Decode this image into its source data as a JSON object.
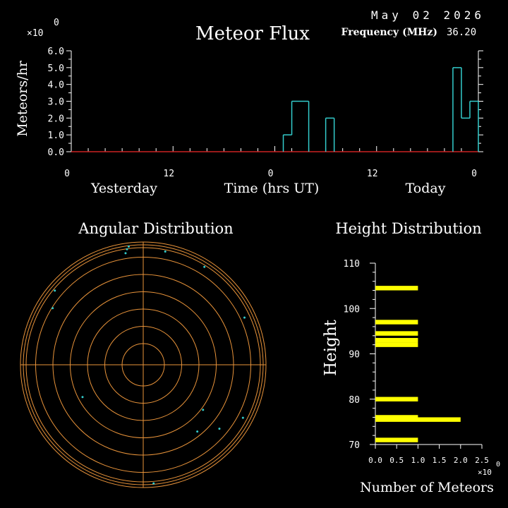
{
  "header": {
    "date": "May 02 2026",
    "frequency_label": "Frequency (MHz)",
    "frequency_value": "36.20"
  },
  "colors": {
    "background": "#000000",
    "axis": "#ffffff",
    "flux_line": "#33cccc",
    "baseline": "#cc2222",
    "polar_rings": "#e8933a",
    "polar_points": "#33cccc",
    "height_bars": "#ffff00"
  },
  "chart_data": [
    {
      "type": "line",
      "title": "Meteor Flux",
      "ylabel": "Meteors/hr",
      "xlabel": "Time (hrs UT)",
      "y_exponent_label": "×10",
      "y_exponent_value": "0",
      "ylim": [
        0,
        6
      ],
      "yticks": [
        "0.0",
        "1.0",
        "2.0",
        "3.0",
        "4.0",
        "5.0",
        "6.0"
      ],
      "xlim": [
        0,
        48
      ],
      "xticks": [
        {
          "x": 0,
          "label": "0"
        },
        {
          "x": 12,
          "label": "12"
        },
        {
          "x": 24,
          "label": "0"
        },
        {
          "x": 36,
          "label": "12"
        },
        {
          "x": 48,
          "label": "0"
        }
      ],
      "day_labels": {
        "yesterday": "Yesterday",
        "today": "Today"
      },
      "series": [
        {
          "step_from_hour": 0,
          "hourly_values": [
            0,
            0,
            0,
            0,
            0,
            0,
            0,
            0,
            0,
            0,
            0,
            0,
            0,
            0,
            0,
            0,
            0,
            0,
            0,
            0,
            0,
            0,
            0,
            0,
            0,
            1,
            3,
            3,
            0,
            0,
            2,
            0,
            0,
            0,
            0,
            0,
            0,
            0,
            0,
            0,
            0,
            0,
            0,
            0,
            0,
            5,
            2,
            3
          ]
        }
      ],
      "grid": false
    },
    {
      "type": "scatter",
      "title": "Angular Distribution",
      "rings": 6,
      "points": [
        {
          "r": 0.95,
          "theta_deg": 98
        },
        {
          "r": 0.97,
          "theta_deg": 97
        },
        {
          "r": 0.92,
          "theta_deg": 99
        },
        {
          "r": 0.94,
          "theta_deg": 79
        },
        {
          "r": 0.94,
          "theta_deg": 58
        },
        {
          "r": 0.94,
          "theta_deg": 140
        },
        {
          "r": 0.87,
          "theta_deg": 148
        },
        {
          "r": 0.91,
          "theta_deg": 25
        },
        {
          "r": 0.92,
          "theta_deg": -28
        },
        {
          "r": 0.61,
          "theta_deg": -37
        },
        {
          "r": 0.56,
          "theta_deg": -152
        },
        {
          "r": 0.7,
          "theta_deg": -51
        },
        {
          "r": 0.81,
          "theta_deg": -40
        },
        {
          "r": 0.97,
          "theta_deg": -85
        }
      ]
    },
    {
      "type": "bar",
      "title": "Height Distribution",
      "ylabel": "Height",
      "xlabel": "Number of Meteors",
      "x_exponent_label": "×10",
      "x_exponent_value": "0",
      "ylim": [
        70,
        110
      ],
      "yticks": [
        "70",
        "80",
        "90",
        "100",
        "110"
      ],
      "xlim": [
        0,
        2.5
      ],
      "xticks": [
        "0.0",
        "0.5",
        "1.0",
        "1.5",
        "2.0",
        "2.5"
      ],
      "bins": [
        {
          "height": 71,
          "count": 1
        },
        {
          "height": 76,
          "count": 1
        },
        {
          "height": 80,
          "count": 1
        },
        {
          "height": 92,
          "count": 1
        },
        {
          "height": 93,
          "count": 1
        },
        {
          "height": 94.5,
          "count": 1
        },
        {
          "height": 97,
          "count": 1
        },
        {
          "height": 104.5,
          "count": 1
        },
        {
          "height": 75.5,
          "count": 2
        }
      ]
    }
  ]
}
